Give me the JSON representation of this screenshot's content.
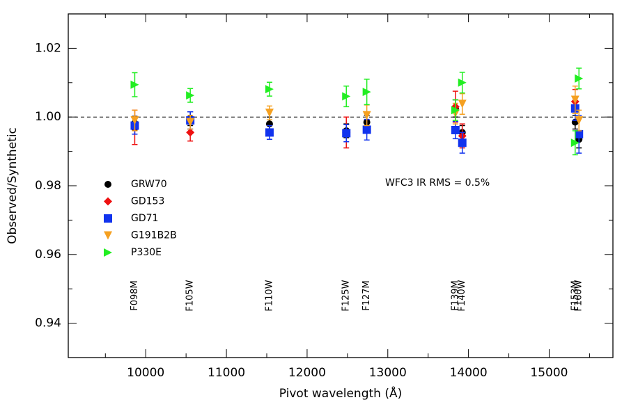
{
  "chart_data": {
    "type": "scatter",
    "xlabel": "Pivot wavelength (Å)",
    "ylabel": "Observed/Synthetic",
    "xlim": [
      9040,
      15790
    ],
    "ylim": [
      0.93,
      1.03
    ],
    "xticks": [
      10000,
      11000,
      12000,
      13000,
      14000,
      15000
    ],
    "xminorticks": [
      9500,
      10500,
      11500,
      12500,
      13500,
      14500,
      15500
    ],
    "yticks": [
      {
        "value": 0.94,
        "label": "0.94"
      },
      {
        "value": 0.96,
        "label": "0.96"
      },
      {
        "value": 0.98,
        "label": "0.98"
      },
      {
        "value": 1.0,
        "label": "1.00"
      },
      {
        "value": 1.02,
        "label": "1.02"
      }
    ],
    "yminorticks": [
      0.95,
      0.97,
      0.99,
      1.01
    ],
    "hline": 1.0,
    "annotation": "WFC3 IR RMS = 0.5%",
    "filters": [
      {
        "text": "F098M",
        "x": 9864
      },
      {
        "text": "F105W",
        "x": 10552
      },
      {
        "text": "F110W",
        "x": 11534
      },
      {
        "text": "F125W",
        "x": 12486
      },
      {
        "text": "F127M",
        "x": 12740
      },
      {
        "text": "F139M",
        "x": 13838
      },
      {
        "text": "F140W",
        "x": 13923
      },
      {
        "text": "F153M",
        "x": 15322
      },
      {
        "text": "F160W",
        "x": 15369
      }
    ],
    "x": [
      9864,
      10552,
      11534,
      12486,
      12740,
      13838,
      13923,
      15322,
      15369
    ],
    "series": [
      {
        "name": "GRW70",
        "color": "#000000",
        "marker": "circle",
        "values": [
          0.9982,
          0.9995,
          0.998,
          0.996,
          0.9985,
          1.0025,
          0.9955,
          0.9985,
          0.9935
        ],
        "errors": [
          0.002,
          0.002,
          0.002,
          0.002,
          0.002,
          0.0025,
          0.002,
          0.002,
          0.0025
        ]
      },
      {
        "name": "GD153",
        "color": "#ee1111",
        "marker": "diamond",
        "values": [
          0.997,
          0.9955,
          null,
          0.9955,
          null,
          1.003,
          0.9945,
          1.0045,
          null
        ],
        "errors": [
          0.005,
          0.0025,
          null,
          0.0045,
          null,
          0.0045,
          0.0035,
          0.0035,
          null
        ]
      },
      {
        "name": "GD71",
        "color": "#1133ee",
        "marker": "square",
        "values": [
          0.9975,
          0.999,
          0.9955,
          0.9953,
          0.9963,
          0.9962,
          0.9925,
          1.0025,
          0.995
        ],
        "errors": [
          0.0025,
          0.0025,
          0.002,
          0.0025,
          0.003,
          0.0025,
          0.003,
          0.0035,
          0.0055
        ]
      },
      {
        "name": "G191B2B",
        "color": "#f5a020",
        "marker": "triangle-down",
        "values": [
          0.999,
          0.9985,
          1.0012,
          null,
          1.0005,
          1.001,
          1.0038,
          1.005,
          0.999
        ],
        "errors": [
          0.003,
          0.002,
          0.002,
          null,
          0.003,
          0.003,
          0.003,
          0.004,
          0.003
        ]
      },
      {
        "name": "P330E",
        "color": "#22ee22",
        "marker": "triangle-right",
        "values": [
          1.0094,
          1.0063,
          1.0081,
          1.006,
          1.0073,
          1.002,
          1.01,
          0.9925,
          1.0112
        ],
        "errors": [
          0.0035,
          0.002,
          0.002,
          0.003,
          0.0037,
          0.003,
          0.003,
          0.0035,
          0.003
        ]
      }
    ]
  }
}
